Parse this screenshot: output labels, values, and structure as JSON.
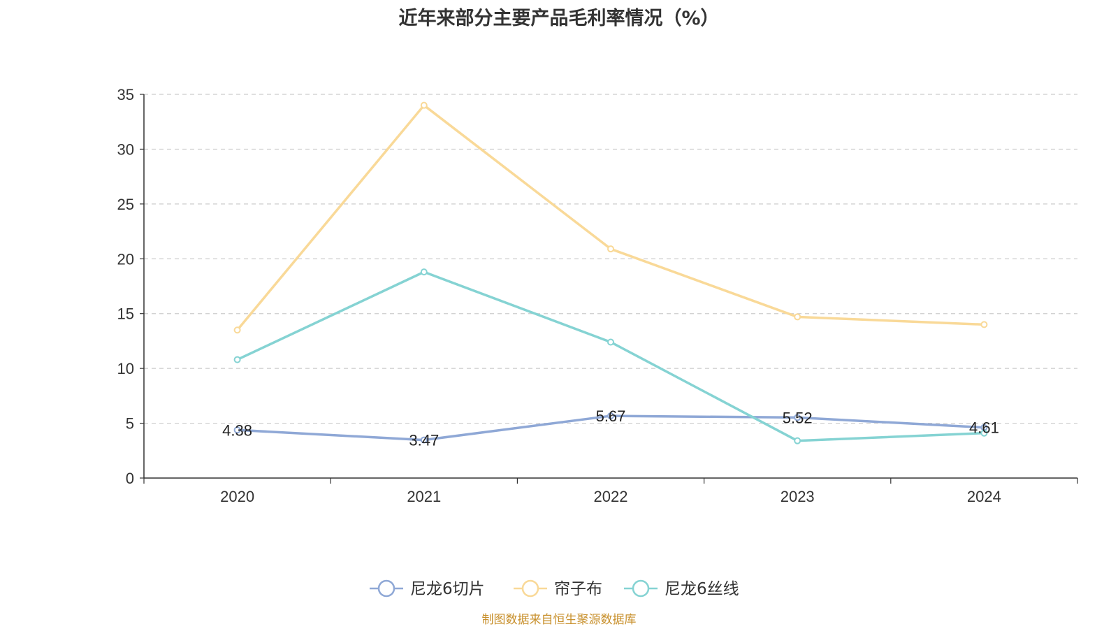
{
  "chart_data": {
    "type": "line",
    "title": "近年来部分主要产品毛利率情况（%）",
    "categories": [
      "2020",
      "2021",
      "2022",
      "2023",
      "2024"
    ],
    "ylim": [
      0,
      35
    ],
    "yticks": [
      "0",
      "5",
      "10",
      "15",
      "20",
      "25",
      "30",
      "35"
    ],
    "grid": true,
    "legend": "bottom-center",
    "series": [
      {
        "name": "尼龙6切片",
        "color": "#8fa8d6",
        "values": [
          4.38,
          3.47,
          5.67,
          5.52,
          4.61
        ],
        "labels": [
          "4.38",
          "3.47",
          "5.67",
          "5.52",
          "4.61"
        ]
      },
      {
        "name": "帘子布",
        "color": "#f9d998",
        "values": [
          13.5,
          34.0,
          20.9,
          14.7,
          14.0
        ]
      },
      {
        "name": "尼龙6丝线",
        "color": "#85d3d3",
        "values": [
          10.8,
          18.8,
          12.4,
          3.4,
          4.1
        ]
      }
    ]
  },
  "source": "制图数据来自恒生聚源数据库"
}
